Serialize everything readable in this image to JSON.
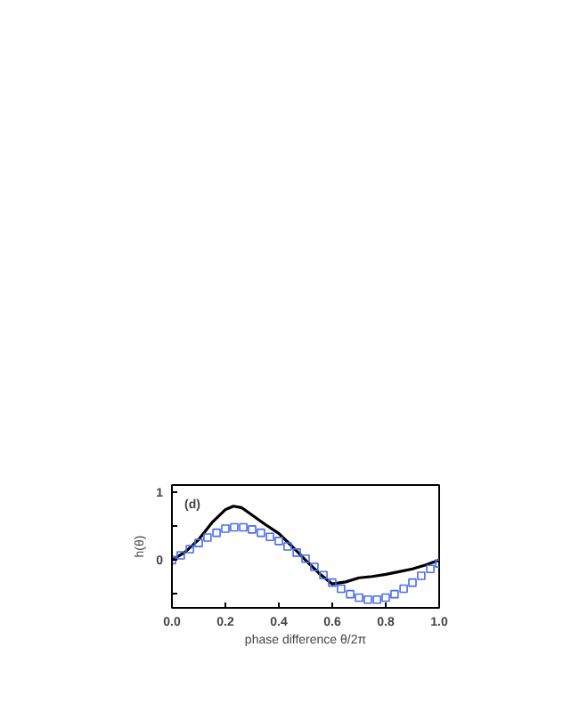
{
  "chart_data": {
    "type": "line",
    "xlabel": "phase difference θ/2π",
    "ylabel": "h(θ)",
    "annotations": [
      "(d)"
    ],
    "xlim": [
      0,
      1
    ],
    "ylim": [
      -0.7,
      1.1
    ],
    "xticks": [
      {
        "value": 0,
        "label": "0.0"
      },
      0.2,
      0.4,
      0.6,
      0.8,
      {
        "value": 1,
        "label": "1.0"
      }
    ],
    "yticks": [
      {
        "value": -0.5,
        "label": null
      },
      0,
      {
        "value": 0.5,
        "label": null
      },
      1
    ],
    "grid": false,
    "series": [
      {
        "color": "#000000",
        "marker": "none",
        "line_style": "solid",
        "x": [
          0,
          0.05,
          0.1,
          0.15,
          0.2,
          0.23,
          0.26,
          0.3,
          0.35,
          0.4,
          0.45,
          0.5,
          0.55,
          0.6,
          0.65,
          0.7,
          0.75,
          0.8,
          0.85,
          0.9,
          0.95,
          1.0
        ],
        "values": [
          0,
          0.12,
          0.3,
          0.55,
          0.74,
          0.79,
          0.77,
          0.66,
          0.52,
          0.39,
          0.2,
          0,
          -0.19,
          -0.35,
          -0.32,
          -0.26,
          -0.24,
          -0.21,
          -0.17,
          -0.13,
          -0.07,
          0
        ]
      },
      {
        "type": "scatter",
        "color": "#4a6cf0",
        "marker": "square",
        "x": [
          0,
          0.033,
          0.067,
          0.1,
          0.133,
          0.167,
          0.2,
          0.233,
          0.267,
          0.3,
          0.333,
          0.367,
          0.4,
          0.433,
          0.467,
          0.5,
          0.533,
          0.567,
          0.6,
          0.633,
          0.667,
          0.7,
          0.733,
          0.767,
          0.8,
          0.833,
          0.867,
          0.9,
          0.933,
          0.967,
          1.0
        ],
        "values": [
          0,
          0.07,
          0.16,
          0.25,
          0.33,
          0.4,
          0.46,
          0.48,
          0.48,
          0.45,
          0.4,
          0.34,
          0.28,
          0.2,
          0.11,
          0.02,
          -0.1,
          -0.22,
          -0.33,
          -0.42,
          -0.5,
          -0.55,
          -0.58,
          -0.58,
          -0.55,
          -0.5,
          -0.42,
          -0.33,
          -0.23,
          -0.13,
          -0.05
        ]
      }
    ]
  }
}
